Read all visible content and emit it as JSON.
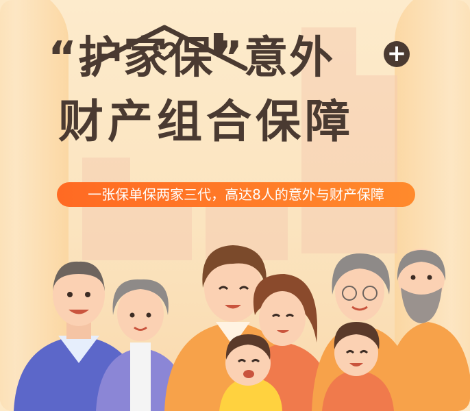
{
  "title": {
    "line1": "“护家保”意外",
    "plus": "+",
    "line2": "财产组合保障"
  },
  "banner": {
    "text": "一张保单保两家三代，高达8人的意外与财产保障"
  },
  "illustration": {
    "people_count": 8,
    "colors": {
      "banner": "#ff7325",
      "title": "#4a3a31",
      "background": "#fde9c7"
    }
  }
}
